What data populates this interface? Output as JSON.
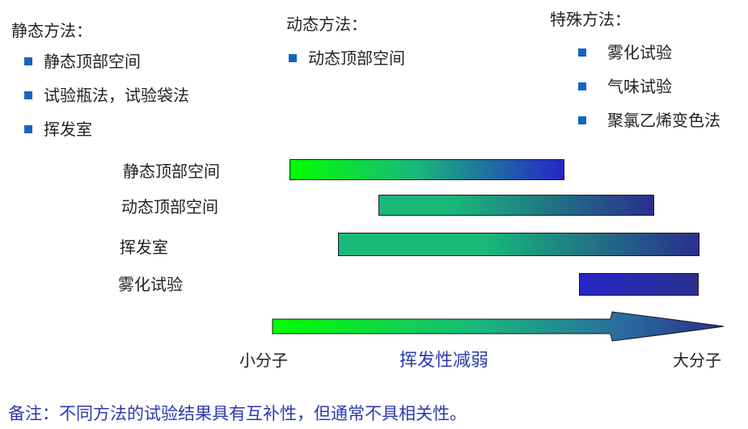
{
  "colors": {
    "bullet": "#1565c0",
    "bar_green": "#00ff00",
    "bar_teal": "#19b97a",
    "bar_navy": "#2a2f8e",
    "bar_blue": "#2626c8",
    "accent_text": "#2b3ab0"
  },
  "static_methods": {
    "heading": "静态方法：",
    "items": [
      "静态顶部空间",
      "试验瓶法，试验袋法",
      "挥发室"
    ]
  },
  "dynamic_methods": {
    "heading": "动态方法：",
    "items": [
      "动态顶部空间"
    ]
  },
  "special_methods": {
    "heading": "特殊方法：",
    "items": [
      "雾化试验",
      "气味试验",
      "聚氯乙烯变色法"
    ]
  },
  "bars": [
    {
      "label": "静态顶部空间"
    },
    {
      "label": "动态顶部空间"
    },
    {
      "label": "挥发室"
    },
    {
      "label": "雾化试验"
    }
  ],
  "axis": {
    "left_label": "小分子",
    "center_label": "挥发性减弱",
    "right_label": "大分子"
  },
  "note": "备注：不同方法的试验结果具有互补性，但通常不具相关性。"
}
